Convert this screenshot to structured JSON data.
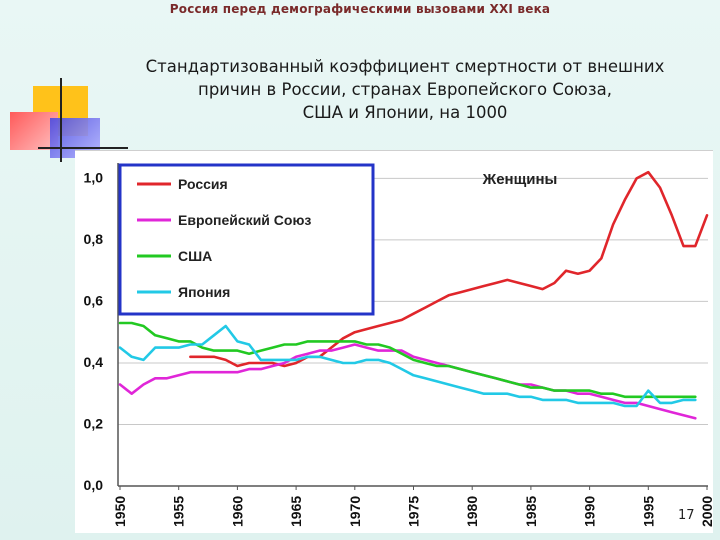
{
  "slide": {
    "header": "Россия перед демографическими вызовами XXI века",
    "title_lines": [
      "Стандартизованный коэффициент смертности от внешних",
      "причин в России, странах Европейского Союза,",
      "США и Японии, на 1000"
    ],
    "page_number": "17"
  },
  "chart_data": {
    "type": "line",
    "title": "Женщины",
    "xlabel": "",
    "ylabel": "",
    "xlim": [
      1950,
      2000
    ],
    "ylim": [
      0,
      1.05
    ],
    "x_ticks": [
      1950,
      1955,
      1960,
      1965,
      1970,
      1975,
      1980,
      1985,
      1990,
      1995,
      2000
    ],
    "y_ticks": [
      0.0,
      0.2,
      0.4,
      0.6,
      0.8,
      1.0
    ],
    "y_tick_labels": [
      "0,0",
      "0,2",
      "0,4",
      "0,6",
      "0,8",
      "1,0"
    ],
    "grid": "horizontal",
    "legend_position": "top-left",
    "series": [
      {
        "name": "Россия",
        "color": "#e0262b",
        "x": [
          1956,
          1957,
          1958,
          1959,
          1960,
          1961,
          1962,
          1963,
          1964,
          1965,
          1966,
          1967,
          1968,
          1969,
          1970,
          1971,
          1972,
          1973,
          1974,
          1975,
          1976,
          1977,
          1978,
          1979,
          1980,
          1981,
          1982,
          1983,
          1984,
          1985,
          1986,
          1987,
          1988,
          1989,
          1990,
          1991,
          1992,
          1993,
          1994,
          1995,
          1996,
          1997,
          1998,
          1999,
          2000
        ],
        "y": [
          0.42,
          0.42,
          0.42,
          0.41,
          0.39,
          0.4,
          0.4,
          0.4,
          0.39,
          0.4,
          0.42,
          0.42,
          0.45,
          0.48,
          0.5,
          0.51,
          0.52,
          0.53,
          0.54,
          0.56,
          0.58,
          0.6,
          0.62,
          0.63,
          0.64,
          0.65,
          0.66,
          0.67,
          0.66,
          0.65,
          0.64,
          0.66,
          0.7,
          0.69,
          0.7,
          0.74,
          0.85,
          0.93,
          1.0,
          1.02,
          0.97,
          0.88,
          0.78,
          0.78,
          0.88
        ]
      },
      {
        "name": "Европейский Союз",
        "color": "#e026d8",
        "x": [
          1950,
          1951,
          1952,
          1953,
          1954,
          1955,
          1956,
          1957,
          1958,
          1959,
          1960,
          1961,
          1962,
          1963,
          1964,
          1965,
          1966,
          1967,
          1968,
          1969,
          1970,
          1971,
          1972,
          1973,
          1974,
          1975,
          1976,
          1977,
          1978,
          1979,
          1980,
          1981,
          1982,
          1983,
          1984,
          1985,
          1986,
          1987,
          1988,
          1989,
          1990,
          1991,
          1992,
          1993,
          1994,
          1995,
          1996,
          1997,
          1998,
          1999
        ],
        "y": [
          0.33,
          0.3,
          0.33,
          0.35,
          0.35,
          0.36,
          0.37,
          0.37,
          0.37,
          0.37,
          0.37,
          0.38,
          0.38,
          0.39,
          0.4,
          0.42,
          0.43,
          0.44,
          0.44,
          0.45,
          0.46,
          0.45,
          0.44,
          0.44,
          0.44,
          0.42,
          0.41,
          0.4,
          0.39,
          0.38,
          0.37,
          0.36,
          0.35,
          0.34,
          0.33,
          0.33,
          0.32,
          0.31,
          0.31,
          0.3,
          0.3,
          0.29,
          0.28,
          0.27,
          0.27,
          0.26,
          0.25,
          0.24,
          0.23,
          0.22
        ]
      },
      {
        "name": "США",
        "color": "#22c922",
        "x": [
          1950,
          1951,
          1952,
          1953,
          1954,
          1955,
          1956,
          1957,
          1958,
          1959,
          1960,
          1961,
          1962,
          1963,
          1964,
          1965,
          1966,
          1967,
          1968,
          1969,
          1970,
          1971,
          1972,
          1973,
          1974,
          1975,
          1976,
          1977,
          1978,
          1979,
          1980,
          1981,
          1982,
          1983,
          1984,
          1985,
          1986,
          1987,
          1988,
          1989,
          1990,
          1991,
          1992,
          1993,
          1994,
          1995,
          1996,
          1997,
          1998,
          1999
        ],
        "y": [
          0.53,
          0.53,
          0.52,
          0.49,
          0.48,
          0.47,
          0.47,
          0.45,
          0.44,
          0.44,
          0.44,
          0.43,
          0.44,
          0.45,
          0.46,
          0.46,
          0.47,
          0.47,
          0.47,
          0.47,
          0.47,
          0.46,
          0.46,
          0.45,
          0.43,
          0.41,
          0.4,
          0.39,
          0.39,
          0.38,
          0.37,
          0.36,
          0.35,
          0.34,
          0.33,
          0.32,
          0.32,
          0.31,
          0.31,
          0.31,
          0.31,
          0.3,
          0.3,
          0.29,
          0.29,
          0.29,
          0.29,
          0.29,
          0.29,
          0.29
        ]
      },
      {
        "name": "Япония",
        "color": "#22c9e6",
        "x": [
          1950,
          1951,
          1952,
          1953,
          1954,
          1955,
          1956,
          1957,
          1958,
          1959,
          1960,
          1961,
          1962,
          1963,
          1964,
          1965,
          1966,
          1967,
          1968,
          1969,
          1970,
          1971,
          1972,
          1973,
          1974,
          1975,
          1976,
          1977,
          1978,
          1979,
          1980,
          1981,
          1982,
          1983,
          1984,
          1985,
          1986,
          1987,
          1988,
          1989,
          1990,
          1991,
          1992,
          1993,
          1994,
          1995,
          1996,
          1997,
          1998,
          1999
        ],
        "y": [
          0.45,
          0.42,
          0.41,
          0.45,
          0.45,
          0.45,
          0.46,
          0.46,
          0.49,
          0.52,
          0.47,
          0.46,
          0.41,
          0.41,
          0.41,
          0.41,
          0.42,
          0.42,
          0.41,
          0.4,
          0.4,
          0.41,
          0.41,
          0.4,
          0.38,
          0.36,
          0.35,
          0.34,
          0.33,
          0.32,
          0.31,
          0.3,
          0.3,
          0.3,
          0.29,
          0.29,
          0.28,
          0.28,
          0.28,
          0.27,
          0.27,
          0.27,
          0.27,
          0.26,
          0.26,
          0.31,
          0.27,
          0.27,
          0.28,
          0.28
        ]
      }
    ]
  }
}
